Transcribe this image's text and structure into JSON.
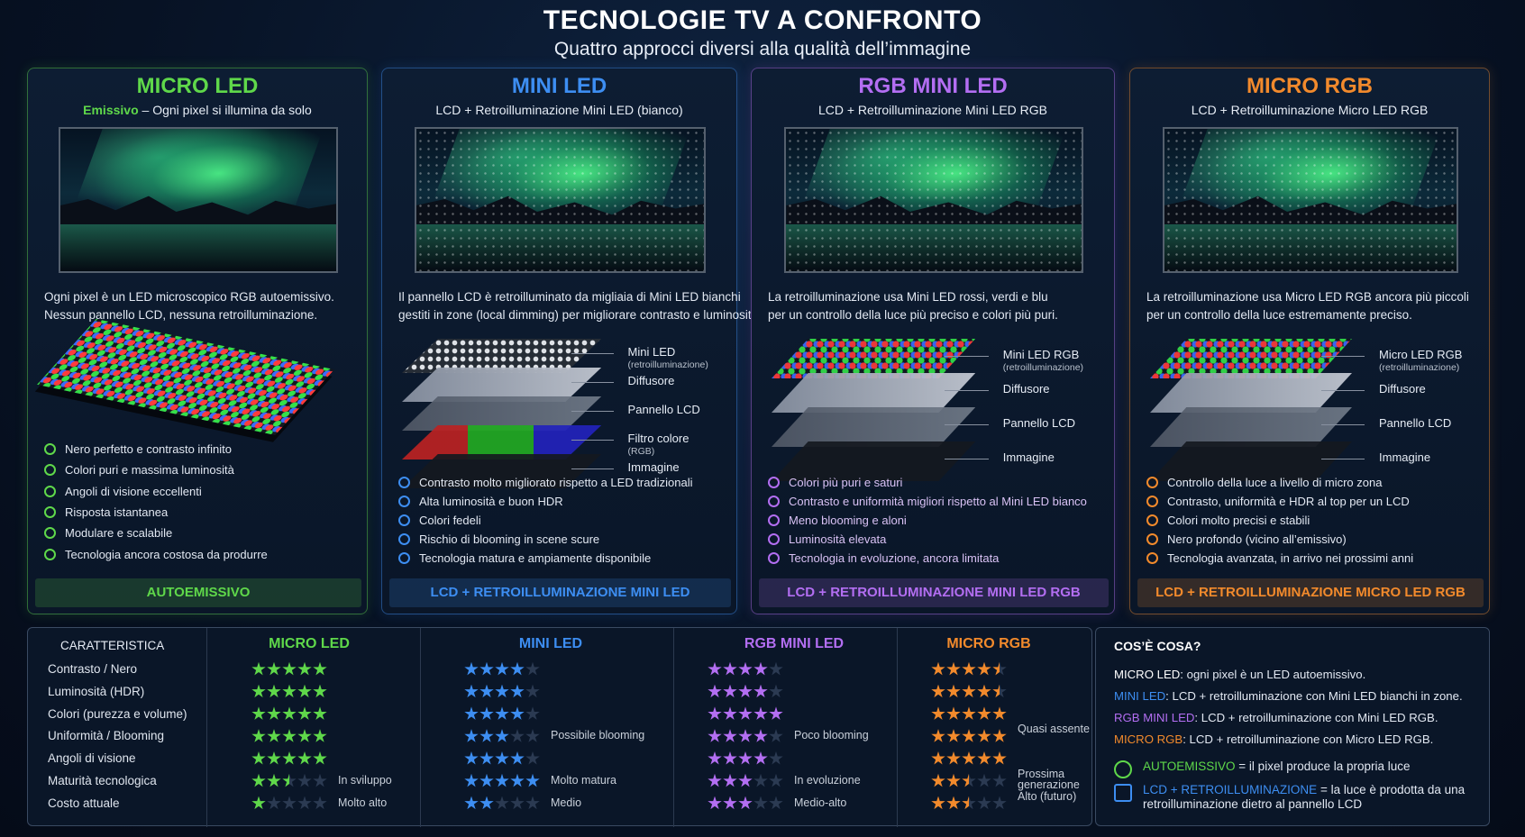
{
  "header": {
    "title": "TECNOLOGIE TV A CONFRONTO",
    "subtitle": "Quattro approcci diversi alla qualità dell’immagine"
  },
  "cards": [
    {
      "title": "MICRO LED",
      "color": "#5fd84a",
      "subtitle_highlight": "Emissivo",
      "subtitle": "– Ogni pixel si illumina da solo",
      "description": [
        "Ogni pixel è un LED microscopico RGB autoemissivo.",
        "Nessun pannello LCD, nessuna retroilluminazione."
      ],
      "layers": [],
      "features": [
        "Nero perfetto e contrasto infinito",
        "Colori puri e massima luminosità",
        "Angoli di visione eccellenti",
        "Risposta istantanea",
        "Modulare e scalabile",
        "Tecnologia ancora costosa da produrre"
      ],
      "footer": "AUTOEMISSIVO"
    },
    {
      "title": "MINI LED",
      "color": "#3d8ef2",
      "subtitle": "LCD + Retroilluminazione Mini LED (bianco)",
      "description": [
        "Il pannello LCD è retroilluminato da migliaia di Mini LED bianchi",
        "gestiti in zone (local dimming) per migliorare contrasto e luminosità."
      ],
      "layers": [
        {
          "label": "Mini LED",
          "note": "(retroilluminazione)"
        },
        {
          "label": "Diffusore"
        },
        {
          "label": "Pannello LCD"
        },
        {
          "label": "Filtro colore",
          "note": "(RGB)"
        },
        {
          "label": "Immagine"
        }
      ],
      "features": [
        "Contrasto molto migliorato rispetto a LED tradizionali",
        "Alta luminosità e buon HDR",
        "Colori fedeli",
        "Rischio di blooming in scene scure",
        "Tecnologia matura e ampiamente disponibile"
      ],
      "footer": "LCD + RETROILLUMINAZIONE MINI LED"
    },
    {
      "title": "RGB MINI LED",
      "color": "#b36ef2",
      "subtitle": "LCD + Retroilluminazione Mini LED RGB",
      "description": [
        "La retroilluminazione usa Mini LED rossi, verdi e blu",
        "per un controllo della luce più preciso e colori più puri."
      ],
      "layers": [
        {
          "label": "Mini LED RGB",
          "note": "(retroilluminazione)"
        },
        {
          "label": "Diffusore"
        },
        {
          "label": "Pannello LCD"
        },
        {
          "label": "Immagine"
        }
      ],
      "features": [
        "Colori più puri e saturi",
        "Contrasto e uniformità migliori rispetto al Mini LED bianco",
        "Meno blooming e aloni",
        "Luminosità elevata",
        "Tecnologia in evoluzione, ancora limitata"
      ],
      "footer": "LCD + RETROILLUMINAZIONE MINI LED RGB"
    },
    {
      "title": "MICRO RGB",
      "color": "#f28a2c",
      "subtitle": "LCD + Retroilluminazione Micro LED RGB",
      "description": [
        "La retroilluminazione usa Micro LED RGB ancora più piccoli",
        "per un controllo della luce estremamente preciso."
      ],
      "layers": [
        {
          "label": "Micro LED RGB",
          "note": "(retroilluminazione)"
        },
        {
          "label": "Diffusore"
        },
        {
          "label": "Pannello LCD"
        },
        {
          "label": "Immagine"
        }
      ],
      "features": [
        "Controllo della luce a livello di micro zona",
        "Contrasto, uniformità e HDR al top per un LCD",
        "Colori molto precisi e stabili",
        "Nero profondo (vicino all’emissivo)",
        "Tecnologia avanzata, in arrivo nei prossimi anni"
      ],
      "footer": "LCD + RETROILLUMINAZIONE MICRO LED RGB"
    }
  ],
  "table": {
    "header": "CARATTERISTICA",
    "rows": [
      {
        "label": "Contrasto / Nero",
        "ratings": [
          5,
          4,
          4,
          4.5
        ],
        "notes": [
          null,
          null,
          null,
          null
        ]
      },
      {
        "label": "Luminosità (HDR)",
        "ratings": [
          5,
          4,
          4,
          4.5
        ],
        "notes": [
          null,
          null,
          null,
          null
        ]
      },
      {
        "label": "Colori (purezza e volume)",
        "ratings": [
          5,
          4,
          5,
          5
        ],
        "notes": [
          null,
          null,
          null,
          null
        ]
      },
      {
        "label": "Uniformità / Blooming",
        "ratings": [
          5,
          3,
          4,
          5
        ],
        "notes": [
          null,
          "Possibile blooming",
          "Poco blooming",
          "Quasi assente"
        ]
      },
      {
        "label": "Angoli di visione",
        "ratings": [
          5,
          4,
          4,
          5
        ],
        "notes": [
          null,
          null,
          null,
          null
        ]
      },
      {
        "label": "Maturità tecnologica",
        "ratings": [
          2.5,
          5,
          3,
          2.5
        ],
        "notes": [
          "In sviluppo",
          "Molto matura",
          "In evoluzione",
          "Prossima generazione"
        ]
      },
      {
        "label": "Costo attuale",
        "ratings": [
          1,
          2,
          3,
          2.5
        ],
        "notes": [
          "Molto alto",
          "Medio",
          "Medio-alto",
          "Alto (futuro)"
        ]
      }
    ]
  },
  "legend": {
    "title": "COS’È COSA?",
    "items": [
      ": ogni pixel è un LED autoemissivo.",
      ": LCD + retroilluminazione con Mini LED bianchi in zone.",
      ": LCD + retroilluminazione con Mini LED RGB.",
      ": LCD + retroilluminazione con Micro LED RGB."
    ],
    "keys": [
      {
        "term": "AUTOEMISSIVO",
        "color": "#5fd84a",
        "text": "= il pixel produce la propria luce"
      },
      {
        "term": "LCD + RETROILLUMINAZIONE",
        "color": "#3d8ef2",
        "text": "= la luce è prodotta da una retroilluminazione dietro al pannello LCD"
      }
    ]
  }
}
